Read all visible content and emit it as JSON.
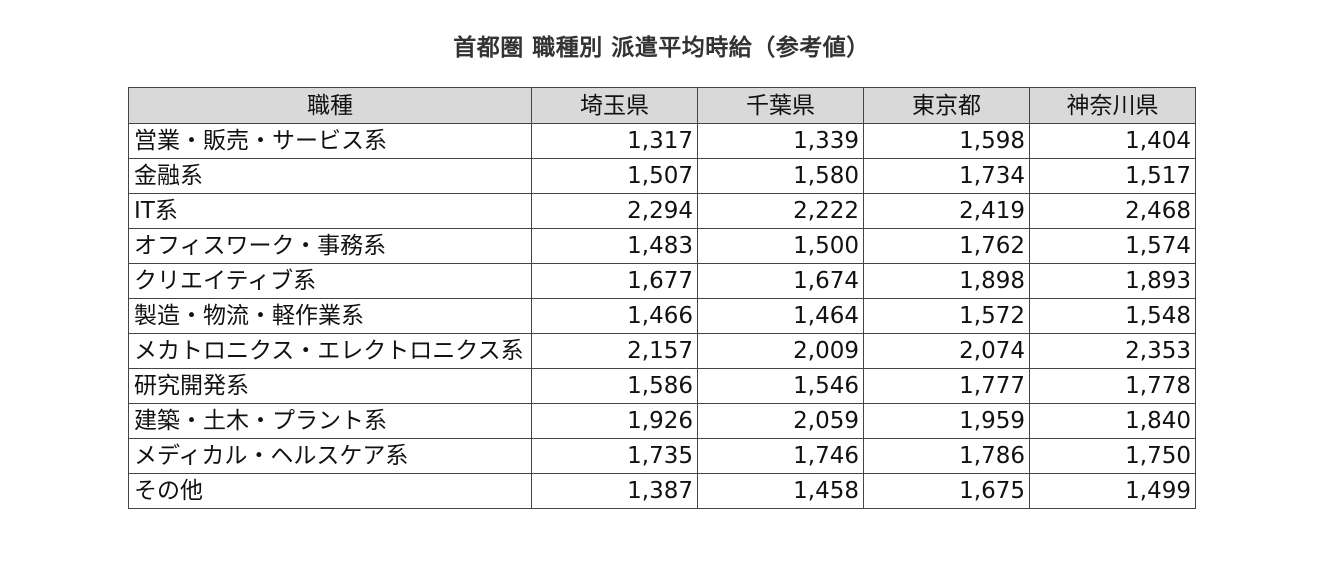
{
  "chart_data": {
    "type": "table",
    "title": "首都圏 職種別 派遣平均時給（参考値）",
    "header": [
      "職種",
      "埼玉県",
      "千葉県",
      "東京都",
      "神奈川県"
    ],
    "rows": [
      [
        "営業・販売・サービス系",
        "1,317",
        "1,339",
        "1,598",
        "1,404"
      ],
      [
        "金融系",
        "1,507",
        "1,580",
        "1,734",
        "1,517"
      ],
      [
        "IT系",
        "2,294",
        "2,222",
        "2,419",
        "2,468"
      ],
      [
        "オフィスワーク・事務系",
        "1,483",
        "1,500",
        "1,762",
        "1,574"
      ],
      [
        "クリエイティブ系",
        "1,677",
        "1,674",
        "1,898",
        "1,893"
      ],
      [
        "製造・物流・軽作業系",
        "1,466",
        "1,464",
        "1,572",
        "1,548"
      ],
      [
        "メカトロニクス・エレクトロニクス系",
        "2,157",
        "2,009",
        "2,074",
        "2,353"
      ],
      [
        "研究開発系",
        "1,586",
        "1,546",
        "1,777",
        "1,778"
      ],
      [
        "建築・土木・プラント系",
        "1,926",
        "2,059",
        "1,959",
        "1,840"
      ],
      [
        "メディカル・ヘルスケア系",
        "1,735",
        "1,746",
        "1,786",
        "1,750"
      ],
      [
        "その他",
        "1,387",
        "1,458",
        "1,675",
        "1,499"
      ]
    ],
    "header_bg": "#d9d9d9",
    "border_color": "#444444"
  }
}
